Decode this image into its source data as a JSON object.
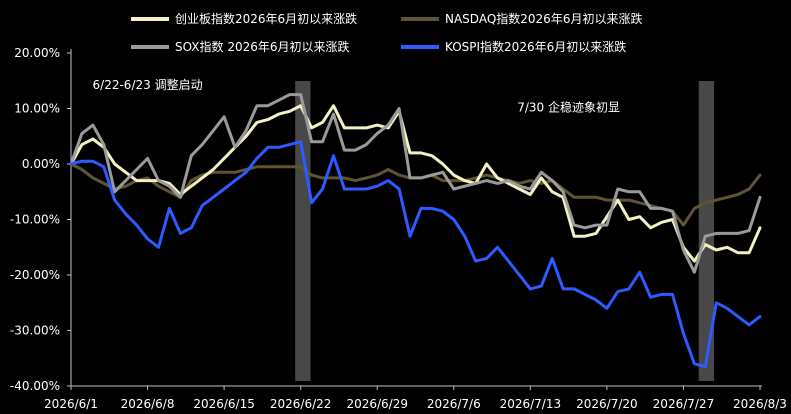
{
  "chart_data": {
    "type": "line",
    "title": "",
    "xlabel": "",
    "ylabel": "",
    "ylim": [
      -40,
      20
    ],
    "y_ticks": [
      20,
      10,
      0,
      -10,
      -20,
      -30,
      -40
    ],
    "y_tick_labels": [
      "20.00%",
      "10.00%",
      "0.00%",
      "-10.00%",
      "-20.00%",
      "-30.00%",
      "-40.00%"
    ],
    "x_tick_labels": [
      "2026/6/1",
      "2026/6/8",
      "2026/6/15",
      "2026/6/22",
      "2026/6/29",
      "2026/7/6",
      "2026/7/13",
      "2026/7/20",
      "2026/7/27",
      "2026/8/3"
    ],
    "x_tick_day_index": [
      0,
      7,
      14,
      21,
      28,
      35,
      42,
      49,
      56,
      63
    ],
    "legend_placement": "top",
    "grid": false,
    "background": "#000000",
    "x_day_index": [
      0,
      1,
      2,
      3,
      4,
      5,
      6,
      7,
      8,
      9,
      10,
      11,
      12,
      13,
      14,
      15,
      16,
      17,
      18,
      19,
      20,
      21,
      22,
      23,
      24,
      25,
      26,
      27,
      28,
      29,
      30,
      31,
      32,
      33,
      34,
      35,
      36,
      37,
      38,
      39,
      40,
      41,
      42,
      43,
      44,
      45,
      46,
      47,
      48,
      49,
      50,
      51,
      52,
      53,
      54,
      55,
      56,
      57,
      58,
      59,
      60,
      61,
      62,
      63
    ],
    "series": [
      {
        "name": "创业板指数2026年6月初以来涨跌",
        "color": "#F3F0C2",
        "values": [
          0.0,
          3.5,
          4.5,
          3.0,
          0.0,
          -1.5,
          -3.0,
          -3.0,
          -3.0,
          -3.5,
          -5.5,
          -4.0,
          -2.5,
          -1.0,
          1.0,
          3.0,
          5.0,
          7.5,
          8.0,
          9.0,
          9.5,
          10.5,
          6.5,
          7.5,
          10.5,
          6.5,
          6.5,
          6.5,
          7.0,
          6.5,
          9.5,
          2.0,
          2.0,
          1.5,
          0.0,
          -2.0,
          -3.0,
          -3.5,
          0.0,
          -2.5,
          -3.5,
          -4.5,
          -5.5,
          -2.5,
          -5.0,
          -6.0,
          -13.0,
          -13.0,
          -12.5,
          -9.5,
          -6.5,
          -10.0,
          -9.5,
          -11.5,
          -10.5,
          -10.0,
          -15.0,
          -17.5,
          -14.5,
          -15.5,
          -15.0,
          -16.0,
          -16.0,
          -11.5
        ]
      },
      {
        "name": "NASDAQ指数2026年6月初以来涨跌",
        "color": "#5E5431",
        "values": [
          0.0,
          -1.0,
          -2.5,
          -3.5,
          -4.5,
          -4.0,
          -3.0,
          -2.5,
          -4.0,
          -5.0,
          -6.0,
          -3.0,
          -2.0,
          -1.5,
          -1.5,
          -1.5,
          -1.0,
          -0.5,
          -0.5,
          -0.5,
          -0.5,
          -0.5,
          -2.0,
          -2.5,
          -2.5,
          -2.5,
          -3.0,
          -2.5,
          -2.0,
          -1.0,
          -2.0,
          -2.5,
          -2.5,
          -2.0,
          -3.0,
          -3.0,
          -3.0,
          -2.5,
          -2.0,
          -2.5,
          -3.0,
          -3.5,
          -3.0,
          -3.5,
          -3.0,
          -4.5,
          -6.0,
          -6.0,
          -6.0,
          -6.5,
          -6.5,
          -6.5,
          -7.0,
          -7.5,
          -8.0,
          -8.5,
          -11.0,
          -8.0,
          -7.0,
          -6.5,
          -6.0,
          -5.5,
          -4.5,
          -2.0
        ]
      },
      {
        "name": "SOX指数 2026年6月初以来涨跌",
        "color": "#9A9A9A",
        "values": [
          0.0,
          5.5,
          7.0,
          3.5,
          -5.0,
          -3.0,
          -1.0,
          1.0,
          -3.0,
          -4.0,
          -6.0,
          1.5,
          3.5,
          6.0,
          8.5,
          3.0,
          6.0,
          10.5,
          10.5,
          11.5,
          12.5,
          12.5,
          4.0,
          4.0,
          9.0,
          2.5,
          2.5,
          3.5,
          5.5,
          7.0,
          10.0,
          -2.5,
          -2.5,
          -2.0,
          -1.5,
          -4.5,
          -4.0,
          -3.5,
          -3.0,
          -3.5,
          -3.0,
          -4.0,
          -4.5,
          -1.5,
          -3.0,
          -5.0,
          -11.0,
          -11.5,
          -11.0,
          -11.0,
          -4.5,
          -5.0,
          -5.0,
          -8.0,
          -8.0,
          -8.5,
          -15.5,
          -19.5,
          -13.0,
          -12.5,
          -12.5,
          -12.5,
          -12.0,
          -6.0
        ]
      },
      {
        "name": "KOSPI指数2026年6月初以来涨跌",
        "color": "#2D5BFF",
        "values": [
          0.0,
          0.5,
          0.5,
          -0.5,
          -6.5,
          -9.0,
          -11.0,
          -13.5,
          -15.0,
          -8.0,
          -12.5,
          -11.5,
          -7.5,
          -6.0,
          -4.5,
          -3.0,
          -1.5,
          1.0,
          3.0,
          3.0,
          3.5,
          4.0,
          -7.0,
          -4.5,
          1.5,
          -4.5,
          -4.5,
          -4.5,
          -4.0,
          -3.0,
          -4.5,
          -13.0,
          -8.0,
          -8.0,
          -8.5,
          -10.0,
          -13.0,
          -17.5,
          -17.0,
          -15.0,
          -17.5,
          -20.0,
          -22.5,
          -22.0,
          -17.0,
          -22.5,
          -22.5,
          -23.5,
          -24.5,
          -26.0,
          -23.0,
          -22.5,
          -19.5,
          -24.0,
          -23.5,
          -23.5,
          -30.5,
          -36.0,
          -36.5,
          -25.0,
          -26.0,
          -27.5,
          -29.0,
          -27.5
        ]
      }
    ],
    "shaded_bands": [
      {
        "start_index": 20.5,
        "end_index": 21.9
      },
      {
        "start_index": 57.4,
        "end_index": 58.8
      }
    ],
    "annotations": [
      {
        "text": "6/22-6/23 调整启动",
        "at_index": 7.0,
        "at_value": 13.5
      },
      {
        "text": "7/30 企稳迹象初显",
        "at_index": 45.5,
        "at_value": 9.5
      }
    ]
  }
}
